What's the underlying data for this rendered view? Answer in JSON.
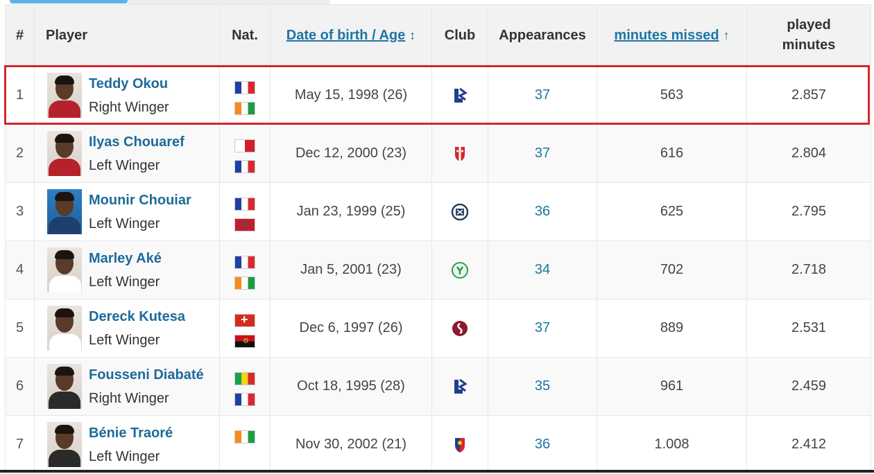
{
  "header": {
    "rank": "#",
    "player": "Player",
    "nat": "Nat.",
    "dob": "Date of birth / Age",
    "dob_sort_icon": "↕",
    "club": "Club",
    "appearances": "Appearances",
    "minutes_missed": "minutes missed",
    "minutes_missed_sort_icon": "↑",
    "played_line1": "played",
    "played_line2": "minutes"
  },
  "colors": {
    "link": "#1d75a3",
    "highlight_border": "#d4262c",
    "header_bg": "#f2f2f2",
    "tab_accent": "#5db3e3"
  },
  "rows": [
    {
      "rank": "1",
      "name": "Teddy Okou",
      "position": "Right Winger",
      "nat1": "flag-france",
      "nat2": "flag-ivory-coast",
      "dob": "May 15, 1998 (26)",
      "club": "lausanne-logo",
      "appearances": "37",
      "missed": "563",
      "played": "2.857"
    },
    {
      "rank": "2",
      "name": "Ilyas Chouaref",
      "position": "Left Winger",
      "nat1": "flag-malta",
      "nat2": "flag-france",
      "dob": "Dec 12, 2000 (23)",
      "club": "sion-logo",
      "appearances": "37",
      "missed": "616",
      "played": "2.804"
    },
    {
      "rank": "3",
      "name": "Mounir Chouiar",
      "position": "Left Winger",
      "nat1": "flag-france",
      "nat2": "flag-morocco",
      "dob": "Jan 23, 1999 (25)",
      "club": "zurich-logo",
      "appearances": "36",
      "missed": "625",
      "played": "2.795"
    },
    {
      "rank": "4",
      "name": "Marley Aké",
      "position": "Left Winger",
      "nat1": "flag-france",
      "nat2": "flag-ivory-coast",
      "dob": "Jan 5, 2001 (23)",
      "club": "yverdon-logo",
      "appearances": "34",
      "missed": "702",
      "played": "2.718"
    },
    {
      "rank": "5",
      "name": "Dereck Kutesa",
      "position": "Left Winger",
      "nat1": "flag-switzerland",
      "nat2": "flag-angola",
      "dob": "Dec 6, 1997 (26)",
      "club": "servette-logo",
      "appearances": "37",
      "missed": "889",
      "played": "2.531"
    },
    {
      "rank": "6",
      "name": "Fousseni Diabaté",
      "position": "Right Winger",
      "nat1": "flag-mali",
      "nat2": "flag-france",
      "dob": "Oct 18, 1995 (28)",
      "club": "lausanne-logo",
      "appearances": "35",
      "missed": "961",
      "played": "2.459"
    },
    {
      "rank": "7",
      "name": "Bénie Traoré",
      "position": "Left Winger",
      "nat1": "flag-ivory-coast",
      "nat2": "",
      "dob": "Nov 30, 2002 (21)",
      "club": "basel-logo",
      "appearances": "36",
      "missed": "1.008",
      "played": "2.412"
    }
  ]
}
